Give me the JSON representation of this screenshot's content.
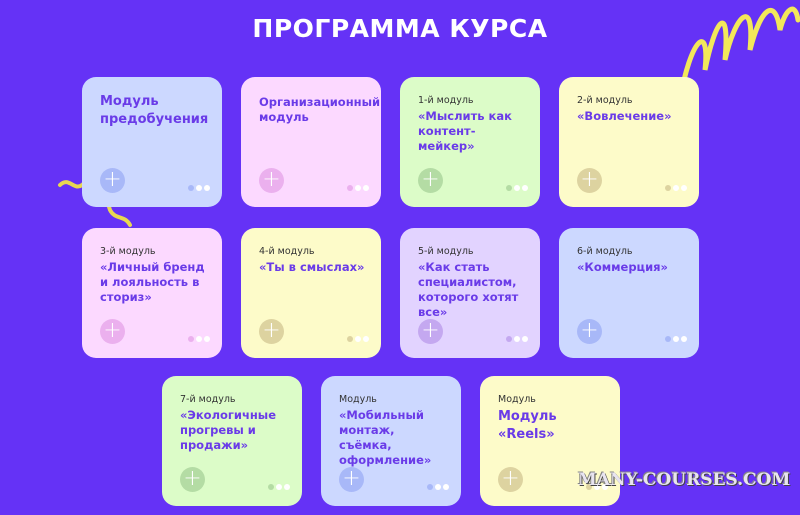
{
  "title": "ПРОГРАММА КУРСА",
  "colors": {
    "background": "#6532f6",
    "accent_text": "#6a3be8"
  },
  "modules": [
    {
      "subtitle": "",
      "name": "Модуль предобучения",
      "bg": "#ccd8ff",
      "accent": "#a8b8f8"
    },
    {
      "subtitle": "",
      "name": "Организационный модуль",
      "bg": "#fcd9ff",
      "accent": "#ebb0ee"
    },
    {
      "subtitle": "1-й модуль",
      "name": "«Мыслить как контент-мейкер»",
      "bg": "#dcfcc8",
      "accent": "#b4dca4"
    },
    {
      "subtitle": "2-й модуль",
      "name": "«Вовлечение»",
      "bg": "#fdfbc9",
      "accent": "#ddd3a0"
    },
    {
      "subtitle": "3-й модуль",
      "name": "«Личный бренд и лояльность в сториз»",
      "bg": "#fcd9ff",
      "accent": "#ebb0ee"
    },
    {
      "subtitle": "4-й модуль",
      "name": "«Ты в смыслах»",
      "bg": "#fdfbc9",
      "accent": "#ddd3a0"
    },
    {
      "subtitle": "5-й модуль",
      "name": "«Как стать специалистом, которого хотят все»",
      "bg": "#e2d3ff",
      "accent": "#c4a8f0"
    },
    {
      "subtitle": "6-й модуль",
      "name": "«Коммерция»",
      "bg": "#ccd8ff",
      "accent": "#a8b8f8"
    },
    {
      "subtitle": "7-й модуль",
      "name": "«Экологичные прогревы и продажи»",
      "bg": "#dcfcc8",
      "accent": "#b4dca4"
    },
    {
      "subtitle": "Модуль",
      "name": "«Мобильный монтаж, съёмка, оформление»",
      "bg": "#ccd8ff",
      "accent": "#a8b8f8"
    },
    {
      "subtitle": "Модуль",
      "name": "Модуль «Reels»",
      "bg": "#fdfbc9",
      "accent": "#ddd3a0"
    }
  ],
  "plus_icon": "plus-icon",
  "watermark": "MANY-COURSES.COM"
}
